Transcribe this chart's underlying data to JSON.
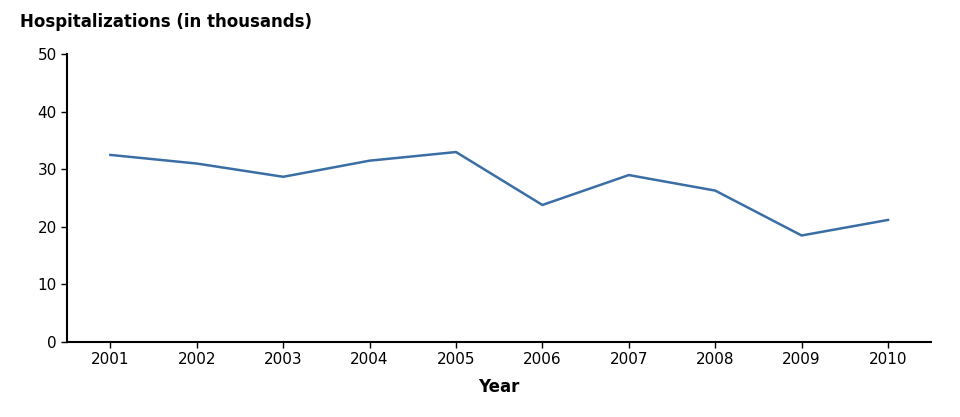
{
  "years": [
    2001,
    2002,
    2003,
    2004,
    2005,
    2006,
    2007,
    2008,
    2009,
    2010
  ],
  "values": [
    32.5,
    31.0,
    28.7,
    31.5,
    33.0,
    23.8,
    29.0,
    26.3,
    18.5,
    21.2
  ],
  "line_color": "#3a6ea5",
  "line_width": 1.8,
  "ylabel": "Hospitalizations (in thousands)",
  "xlabel": "Year",
  "ylim": [
    0,
    50
  ],
  "yticks": [
    0,
    10,
    20,
    30,
    40,
    50
  ],
  "xlim": [
    2000.5,
    2010.5
  ],
  "xticks": [
    2001,
    2002,
    2003,
    2004,
    2005,
    2006,
    2007,
    2008,
    2009,
    2010
  ],
  "background_color": "#ffffff",
  "ylabel_fontsize": 12,
  "xlabel_fontsize": 12,
  "tick_fontsize": 11,
  "ylabel_fontweight": "bold"
}
